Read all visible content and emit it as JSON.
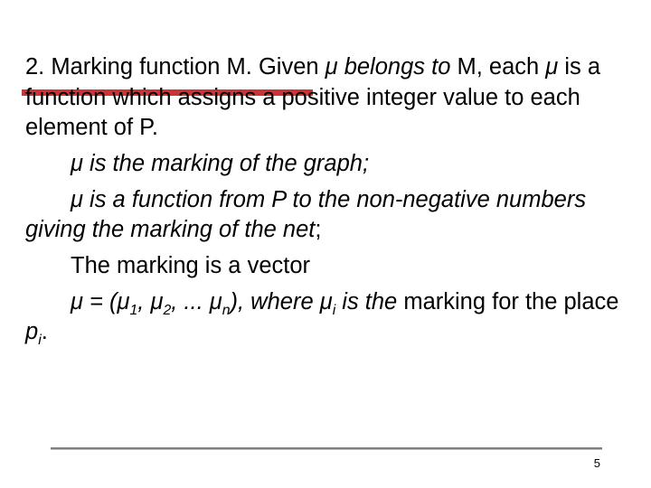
{
  "slide": {
    "accent_color": "#cc3333",
    "footer_line_color": "#808080",
    "paragraphs": {
      "p1_a": "2. Marking function M. Given ",
      "p1_b": "μ belongs to ",
      "p1_c": "M",
      "p1_d": ", each ",
      "p1_e": "μ",
      "p1_f": " is a function which assigns a positive integer value to each element of P.",
      "p2": "μ is the marking of the graph;",
      "p3_a": "μ is a function from P to the non-negative numbers giving the marking    of the net",
      "p3_b": ";",
      "p4": "The marking is a vector",
      "p5_a": "μ = (μ",
      "p5_s1": "1",
      "p5_b": ", μ",
      "p5_s2": "2",
      "p5_c": ", ... μ",
      "p5_sn": "n",
      "p5_d": "), where μ",
      "p5_si": "i",
      "p5_e": " is the ",
      "p5_f": "marking for the place ",
      "p5_g": "p",
      "p5_si2": "i",
      "p5_h": "."
    },
    "page_number": "5"
  }
}
